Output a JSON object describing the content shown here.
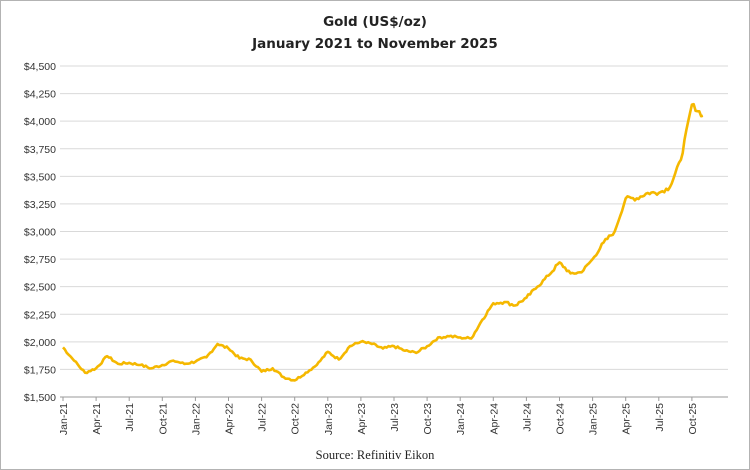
{
  "chart_data": {
    "type": "line",
    "title": "Gold (US$/oz)",
    "subtitle": "January 2021 to November 2025",
    "source": "Source: Refinitiv Eikon",
    "ylim": [
      1500,
      4500
    ],
    "y_ticks": [
      1500,
      1750,
      2000,
      2250,
      2500,
      2750,
      3000,
      3250,
      3500,
      3750,
      4000,
      4250,
      4500
    ],
    "y_tick_labels": [
      "$1,500",
      "$1,750",
      "$2,000",
      "$2,250",
      "$2,500",
      "$2,750",
      "$3,000",
      "$3,250",
      "$3,500",
      "$3,750",
      "$4,000",
      "$4,250",
      "$4,500"
    ],
    "x_tick_labels": [
      "Jan-21",
      "Apr-21",
      "Jul-21",
      "Oct-21",
      "Jan-22",
      "Apr-22",
      "Jul-22",
      "Oct-22",
      "Jan-23",
      "Apr-23",
      "Jul-23",
      "Oct-23",
      "Jan-24",
      "Apr-24",
      "Jul-24",
      "Oct-24",
      "Jan-25",
      "Apr-25",
      "Jul-25",
      "Oct-25"
    ],
    "grid": true,
    "line_color": "#f5b800",
    "series": [
      {
        "x": [
          "2021-01",
          "2021-02",
          "2021-03",
          "2021-04",
          "2021-05",
          "2021-06",
          "2021-07",
          "2021-08",
          "2021-09",
          "2021-10",
          "2021-11",
          "2021-12",
          "2022-01",
          "2022-02",
          "2022-03",
          "2022-04",
          "2022-05",
          "2022-06",
          "2022-07",
          "2022-08",
          "2022-09",
          "2022-10",
          "2022-11",
          "2022-12",
          "2023-01",
          "2023-02",
          "2023-03",
          "2023-04",
          "2023-05",
          "2023-06",
          "2023-07",
          "2023-08",
          "2023-09",
          "2023-10",
          "2023-11",
          "2023-12",
          "2024-01",
          "2024-02",
          "2024-03",
          "2024-04",
          "2024-05",
          "2024-06",
          "2024-07",
          "2024-08",
          "2024-09",
          "2024-10",
          "2024-11",
          "2024-12",
          "2025-01",
          "2025-02",
          "2025-03",
          "2025-04",
          "2025-05",
          "2025-06",
          "2025-07",
          "2025-08",
          "2025-09",
          "2025-10",
          "2025-11"
        ],
        "values": [
          1950,
          1830,
          1720,
          1760,
          1870,
          1800,
          1810,
          1790,
          1760,
          1790,
          1830,
          1800,
          1820,
          1860,
          1980,
          1940,
          1850,
          1840,
          1730,
          1760,
          1680,
          1650,
          1720,
          1790,
          1910,
          1840,
          1960,
          2000,
          1980,
          1940,
          1960,
          1920,
          1900,
          1960,
          2040,
          2050,
          2040,
          2030,
          2200,
          2350,
          2360,
          2330,
          2400,
          2500,
          2600,
          2720,
          2620,
          2630,
          2750,
          2900,
          3000,
          3300,
          3300,
          3350,
          3350,
          3400,
          3650,
          4150,
          4050
        ]
      }
    ]
  }
}
